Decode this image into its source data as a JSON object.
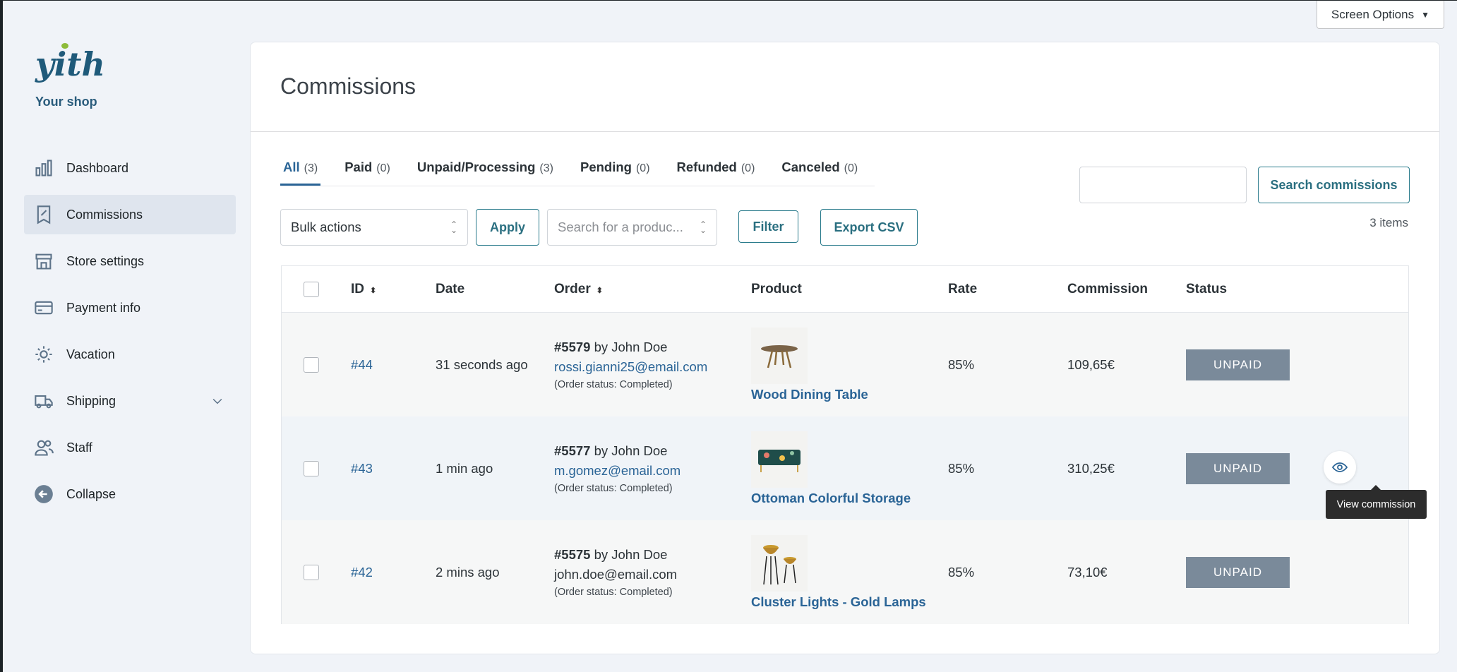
{
  "brand": {
    "logo_text": "yith",
    "shop_name": "Your shop"
  },
  "screen_options": "Screen Options",
  "sidebar": {
    "items": [
      {
        "label": "Dashboard",
        "icon": "bar-chart-icon"
      },
      {
        "label": "Commissions",
        "icon": "receipt-percent-icon",
        "active": true
      },
      {
        "label": "Store settings",
        "icon": "store-icon"
      },
      {
        "label": "Payment info",
        "icon": "credit-card-icon"
      },
      {
        "label": "Vacation",
        "icon": "sun-icon"
      },
      {
        "label": "Shipping",
        "icon": "truck-icon"
      },
      {
        "label": "Staff",
        "icon": "users-icon"
      },
      {
        "label": "Collapse",
        "icon": "arrow-left-circle-icon"
      }
    ]
  },
  "page": {
    "title": "Commissions"
  },
  "tabs": [
    {
      "label": "All",
      "count": "(3)"
    },
    {
      "label": "Paid",
      "count": "(0)"
    },
    {
      "label": "Unpaid/Processing",
      "count": "(3)"
    },
    {
      "label": "Pending",
      "count": "(0)"
    },
    {
      "label": "Refunded",
      "count": "(0)"
    },
    {
      "label": "Canceled",
      "count": "(0)"
    }
  ],
  "toolbar": {
    "bulk_actions": "Bulk actions",
    "apply": "Apply",
    "product_placeholder": "Search for a produc...",
    "filter": "Filter",
    "export": "Export CSV",
    "search_value": "",
    "search_button": "Search commissions",
    "items_count": "3 items"
  },
  "table": {
    "headers": {
      "id": "ID",
      "date": "Date",
      "order": "Order",
      "product": "Product",
      "rate": "Rate",
      "commission": "Commission",
      "status": "Status"
    },
    "rows": [
      {
        "id": "#44",
        "date": "31 seconds ago",
        "order_no": "#5579",
        "by": " by John Doe",
        "email": "rossi.gianni25@email.com",
        "order_status": "(Order status: Completed)",
        "product": "Wood Dining Table",
        "rate": "85%",
        "commission": "109,65€",
        "status": "UNPAID"
      },
      {
        "id": "#43",
        "date": "1 min ago",
        "order_no": "#5577",
        "by": " by John Doe",
        "email": "m.gomez@email.com",
        "order_status": "(Order status: Completed)",
        "product": "Ottoman Colorful Storage",
        "rate": "85%",
        "commission": "310,25€",
        "status": "UNPAID"
      },
      {
        "id": "#42",
        "date": "2 mins ago",
        "order_no": "#5575",
        "by": " by John Doe",
        "email": "john.doe@email.com",
        "order_status": "(Order status: Completed)",
        "product": "Cluster Lights - Gold Lamps",
        "rate": "85%",
        "commission": "73,10€",
        "status": "UNPAID"
      }
    ]
  },
  "tooltip": "View commission"
}
